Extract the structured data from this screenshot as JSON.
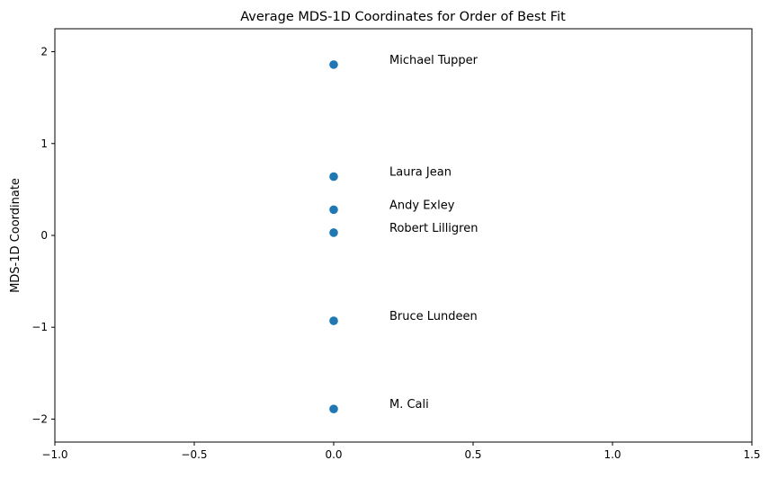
{
  "chart_data": {
    "type": "scatter",
    "title": "Average MDS-1D Coordinates for Order of Best Fit",
    "xlabel": "",
    "ylabel": "MDS-1D Coordinate",
    "xlim": [
      -1.0,
      1.5
    ],
    "ylim": [
      -2.25,
      2.25
    ],
    "xticks": [
      -1.0,
      -0.5,
      0.0,
      0.5,
      1.0,
      1.5
    ],
    "xtick_labels": [
      "−1.0",
      "−0.5",
      "0.0",
      "0.5",
      "1.0",
      "1.5"
    ],
    "yticks": [
      -2,
      -1,
      0,
      1,
      2
    ],
    "ytick_labels": [
      "−2",
      "−1",
      "0",
      "1",
      "2"
    ],
    "grid": false,
    "marker_color": "#1f77b4",
    "points": [
      {
        "label": "Michael Tupper",
        "x": 0.0,
        "y": 1.86
      },
      {
        "label": "Laura Jean",
        "x": 0.0,
        "y": 0.64
      },
      {
        "label": "Andy Exley",
        "x": 0.0,
        "y": 0.28
      },
      {
        "label": "Robert Lilligren",
        "x": 0.0,
        "y": 0.03
      },
      {
        "label": "Bruce Lundeen",
        "x": 0.0,
        "y": -0.93
      },
      {
        "label": "M. Cali",
        "x": 0.0,
        "y": -1.89
      }
    ]
  }
}
